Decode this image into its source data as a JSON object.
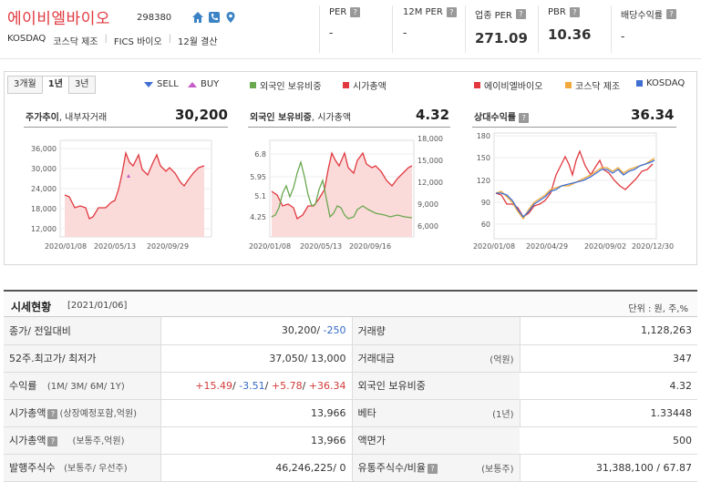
{
  "header": {
    "company": "에이비엘바이오",
    "code": "298380",
    "market": "KOSDAQ",
    "sector1": "코스닥 제조",
    "sector2": "FICS 바이오",
    "settlement": "12월 결산",
    "icons": [
      "home-icon",
      "phone-icon",
      "location-icon"
    ]
  },
  "metrics": [
    {
      "label": "PER",
      "value": "-"
    },
    {
      "label": "12M PER",
      "value": "-"
    },
    {
      "label": "업종 PER",
      "value": "271.09"
    },
    {
      "label": "PBR",
      "value": "10.36"
    },
    {
      "label": "배당수익률",
      "value": "-"
    }
  ],
  "tabs": [
    "3개월",
    "1년",
    "3년"
  ],
  "legends": {
    "sell": "SELL",
    "buy": "BUY",
    "foreign": "외국인 보유비중",
    "mcap": "시가총액",
    "company": "에이비엘바이오",
    "kosdaq_mfg": "코스닥 제조",
    "kosdaq": "KOSDAQ"
  },
  "colors": {
    "red": "#e0383e",
    "green": "#6aa84f",
    "orange": "#f2a93b",
    "blue": "#3f6fd1",
    "pink_fill": "#fbdada"
  },
  "charts": {
    "price": {
      "title_bold": "주가추이",
      "title_rest": ", 내부자거래",
      "value": "30,200",
      "yticks": [
        "36,000",
        "30,000",
        "24,000",
        "18,000",
        "12,000"
      ],
      "xticks": [
        "2020/01/08",
        "2020/05/13",
        "2020/09/29"
      ]
    },
    "foreign": {
      "title_bold": "외국인 보유비중",
      "title_rest": ", 시가총액",
      "value": "4.32",
      "yticks_left": [
        "6.8",
        "5.95",
        "5.1",
        "4.25"
      ],
      "yticks_right": [
        "18,000",
        "15,000",
        "12,000",
        "9,000",
        "6,000"
      ],
      "xticks": [
        "2020/01/08",
        "2020/05/13",
        "2020/09/16"
      ]
    },
    "relative": {
      "title_bold": "상대수익률",
      "value": "36.34",
      "yticks": [
        "180",
        "150",
        "120",
        "90",
        "60"
      ],
      "xticks": [
        "2020/01/08",
        "2020/04/29",
        "2020/09/02",
        "2020/12/30"
      ]
    }
  },
  "section": {
    "title": "시세현황",
    "date": "[2021/01/06]",
    "unit": "단위 : 원, 주,%"
  },
  "rows": [
    {
      "k1": "종가/ 전일대비",
      "s1": "",
      "v1a": "30,200/ ",
      "v1b": "-250",
      "k2": "거래량",
      "s2": "",
      "v2": "1,128,263"
    },
    {
      "k1": "52주.최고가/ 최저가",
      "s1": "",
      "v1a": "37,050/ 13,000",
      "v1b": "",
      "k2": "거래대금",
      "s2": "(억원)",
      "v2": "347"
    },
    {
      "k1": "수익률",
      "s1": "(1M/ 3M/ 6M/ 1Y)",
      "v1a": "",
      "v1b": "",
      "k2": "외국인 보유비중",
      "s2": "",
      "v2": "4.32"
    },
    {
      "k1": "시가총액",
      "s1": "(상장예정포함,억원)",
      "v1a": "13,966",
      "v1b": "",
      "k2": "베타",
      "s2": "(1년)",
      "v2": "1.33448"
    },
    {
      "k1": "시가총액",
      "s1": "(보통주,억원)",
      "v1a": "13,966",
      "v1b": "",
      "k2": "액면가",
      "s2": "",
      "v2": "500"
    },
    {
      "k1": "발행주식수",
      "s1": "(보통주/ 우선주)",
      "v1a": "46,246,225/ 0",
      "v1b": "",
      "k2": "유통주식수/비율",
      "s2": "(보통주)",
      "v2": "31,388,100 / 67.87"
    }
  ],
  "returns": {
    "r1m": "+15.49",
    "r3m": "-3.51",
    "r6m": "+5.78",
    "r1y": "+36.34"
  }
}
